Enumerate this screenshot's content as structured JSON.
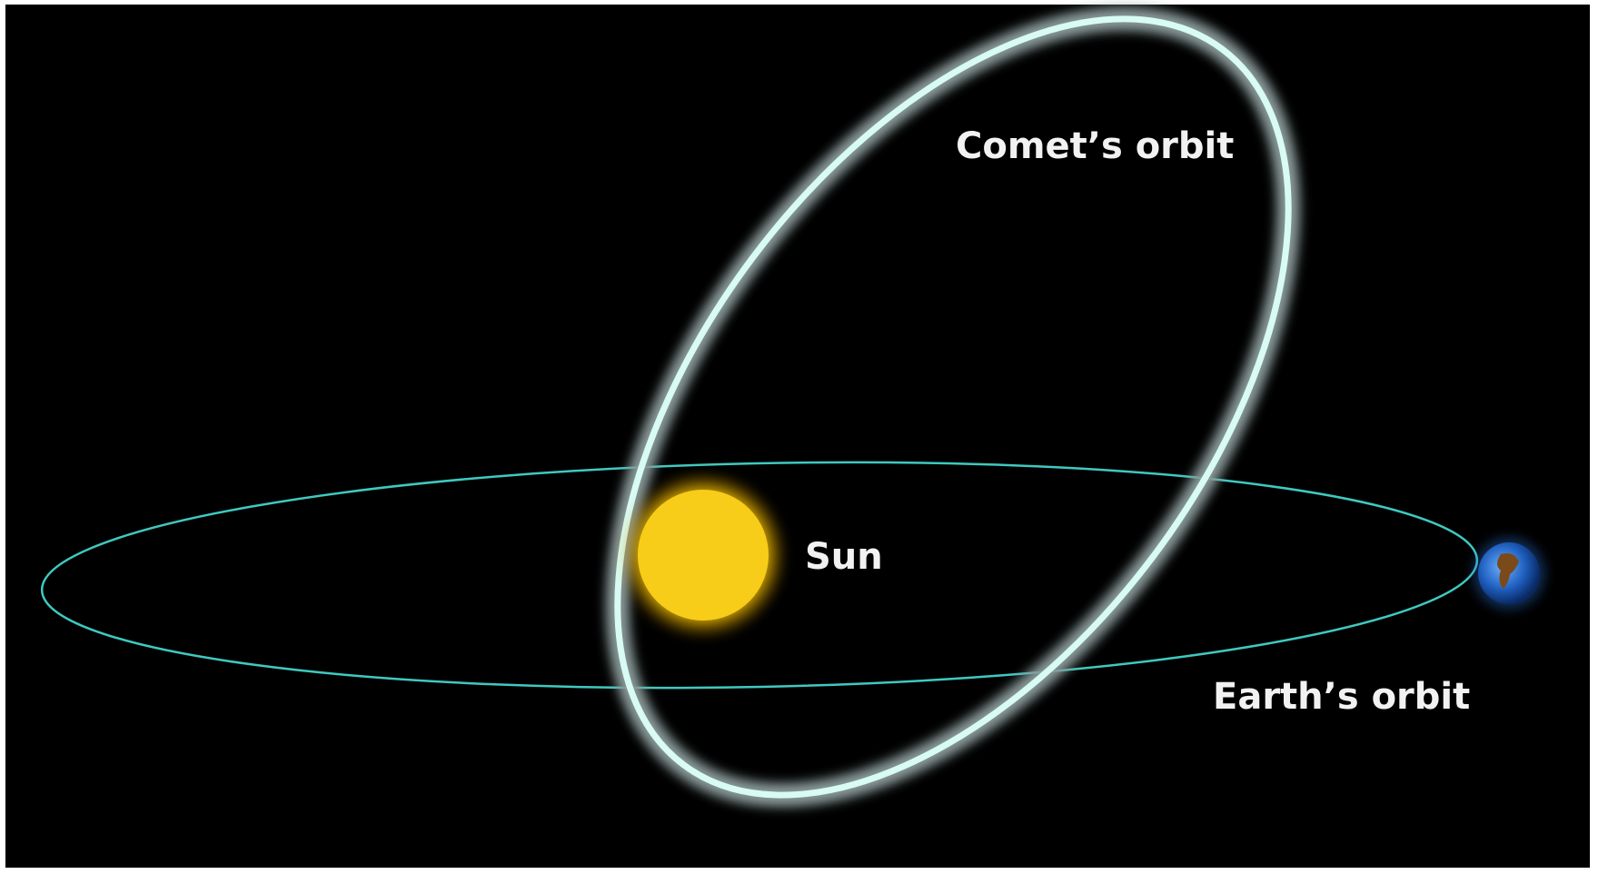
{
  "labels": {
    "comet_orbit": "Comet’s orbit",
    "sun": "Sun",
    "earth_orbit": "Earth’s orbit"
  }
}
